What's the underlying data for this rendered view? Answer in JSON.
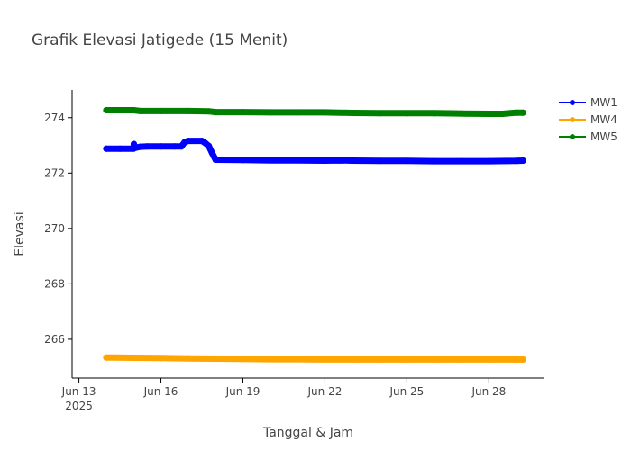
{
  "chart_data": {
    "type": "line",
    "title": "Grafik Elevasi Jatigede (15 Menit)",
    "xlabel": "Tanggal & Jam",
    "ylabel": "Elevasi",
    "x_ticks": [
      {
        "label": "Jun 13",
        "sublabel": "2025",
        "value": "2025-06-13"
      },
      {
        "label": "Jun 16",
        "value": "2025-06-16"
      },
      {
        "label": "Jun 19",
        "value": "2025-06-19"
      },
      {
        "label": "Jun 22",
        "value": "2025-06-22"
      },
      {
        "label": "Jun 25",
        "value": "2025-06-25"
      },
      {
        "label": "Jun 28",
        "value": "2025-06-28"
      }
    ],
    "y_ticks": [
      266,
      268,
      270,
      272,
      274
    ],
    "xlim": [
      "2025-06-12 18:00",
      "2025-06-30 00:00"
    ],
    "ylim": [
      264.6,
      275.0
    ],
    "legend_position": "top-right",
    "series": [
      {
        "name": "MW1",
        "color": "#0000ff",
        "points": [
          [
            "2025-06-14 00:00",
            272.88
          ],
          [
            "2025-06-14 12:00",
            272.88
          ],
          [
            "2025-06-15 00:00",
            272.88
          ],
          [
            "2025-06-15 00:15",
            273.05
          ],
          [
            "2025-06-15 00:30",
            272.9
          ],
          [
            "2025-06-15 06:00",
            272.95
          ],
          [
            "2025-06-15 12:00",
            272.96
          ],
          [
            "2025-06-16 00:00",
            272.96
          ],
          [
            "2025-06-16 12:00",
            272.96
          ],
          [
            "2025-06-16 18:00",
            272.96
          ],
          [
            "2025-06-16 21:00",
            273.12
          ],
          [
            "2025-06-17 00:00",
            273.16
          ],
          [
            "2025-06-17 12:00",
            273.16
          ],
          [
            "2025-06-17 15:00",
            273.08
          ],
          [
            "2025-06-17 18:00",
            272.98
          ],
          [
            "2025-06-17 21:00",
            272.72
          ],
          [
            "2025-06-18 00:00",
            272.48
          ],
          [
            "2025-06-19 00:00",
            272.47
          ],
          [
            "2025-06-20 00:00",
            272.46
          ],
          [
            "2025-06-21 00:00",
            272.46
          ],
          [
            "2025-06-22 00:00",
            272.45
          ],
          [
            "2025-06-22 12:00",
            272.46
          ],
          [
            "2025-06-23 00:00",
            272.45
          ],
          [
            "2025-06-24 00:00",
            272.44
          ],
          [
            "2025-06-25 00:00",
            272.44
          ],
          [
            "2025-06-26 00:00",
            272.43
          ],
          [
            "2025-06-27 00:00",
            272.43
          ],
          [
            "2025-06-28 00:00",
            272.43
          ],
          [
            "2025-06-29 00:00",
            272.44
          ],
          [
            "2025-06-29 06:00",
            272.45
          ]
        ]
      },
      {
        "name": "MW4",
        "color": "#ffa500",
        "points": [
          [
            "2025-06-14 00:00",
            265.34
          ],
          [
            "2025-06-15 00:00",
            265.33
          ],
          [
            "2025-06-16 00:00",
            265.32
          ],
          [
            "2025-06-17 00:00",
            265.31
          ],
          [
            "2025-06-18 00:00",
            265.3
          ],
          [
            "2025-06-19 00:00",
            265.29
          ],
          [
            "2025-06-20 00:00",
            265.28
          ],
          [
            "2025-06-21 00:00",
            265.28
          ],
          [
            "2025-06-22 00:00",
            265.27
          ],
          [
            "2025-06-23 00:00",
            265.27
          ],
          [
            "2025-06-24 00:00",
            265.27
          ],
          [
            "2025-06-25 00:00",
            265.27
          ],
          [
            "2025-06-26 00:00",
            265.27
          ],
          [
            "2025-06-27 00:00",
            265.27
          ],
          [
            "2025-06-28 00:00",
            265.27
          ],
          [
            "2025-06-29 00:00",
            265.27
          ],
          [
            "2025-06-29 06:00",
            265.27
          ]
        ]
      },
      {
        "name": "MW5",
        "color": "#008000",
        "points": [
          [
            "2025-06-14 00:00",
            274.27
          ],
          [
            "2025-06-15 00:00",
            274.27
          ],
          [
            "2025-06-15 06:00",
            274.24
          ],
          [
            "2025-06-16 00:00",
            274.24
          ],
          [
            "2025-06-17 00:00",
            274.24
          ],
          [
            "2025-06-17 18:00",
            274.23
          ],
          [
            "2025-06-18 00:00",
            274.2
          ],
          [
            "2025-06-19 00:00",
            274.2
          ],
          [
            "2025-06-20 00:00",
            274.19
          ],
          [
            "2025-06-21 00:00",
            274.19
          ],
          [
            "2025-06-22 00:00",
            274.19
          ],
          [
            "2025-06-23 00:00",
            274.17
          ],
          [
            "2025-06-24 00:00",
            274.16
          ],
          [
            "2025-06-25 00:00",
            274.16
          ],
          [
            "2025-06-26 00:00",
            274.16
          ],
          [
            "2025-06-27 00:00",
            274.15
          ],
          [
            "2025-06-28 00:00",
            274.14
          ],
          [
            "2025-06-28 12:00",
            274.14
          ],
          [
            "2025-06-29 00:00",
            274.18
          ],
          [
            "2025-06-29 06:00",
            274.18
          ]
        ]
      }
    ]
  }
}
